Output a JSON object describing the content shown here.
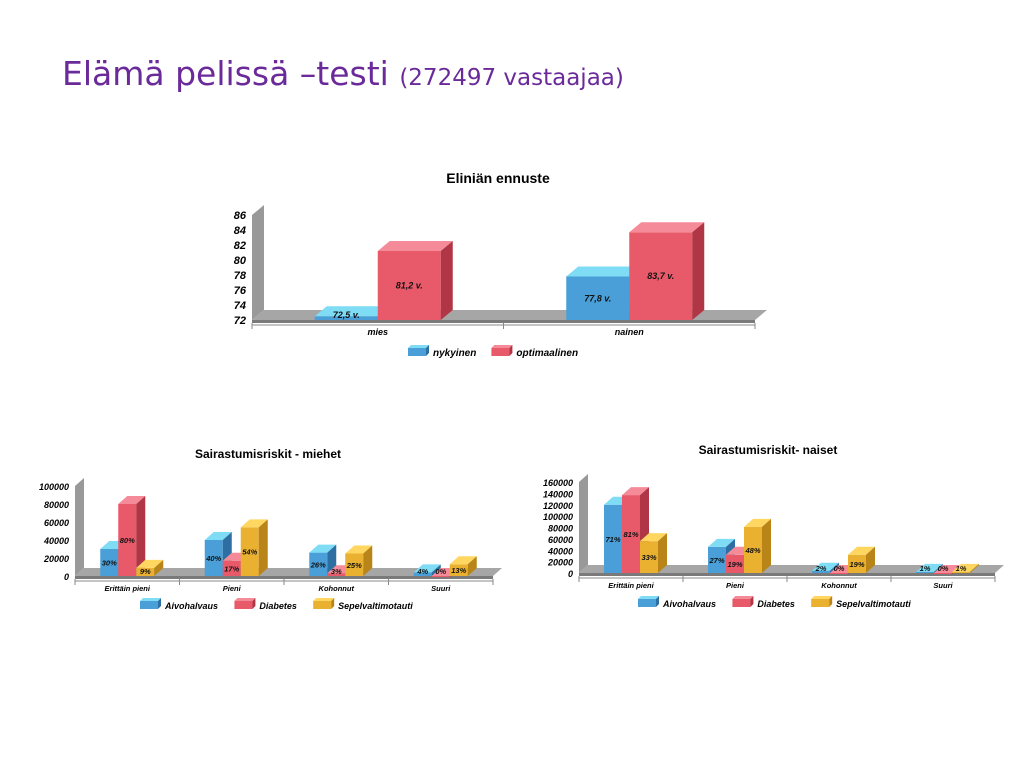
{
  "slide": {
    "title": "Elämä pelissä –testi",
    "subtitle": "(272497 vastaajaa)"
  },
  "chart_data": [
    {
      "type": "bar",
      "title": "Eliniän ennuste",
      "categories": [
        "mies",
        "nainen"
      ],
      "ylim": [
        72,
        86
      ],
      "ticks": [
        72,
        74,
        76,
        78,
        80,
        82,
        84,
        86
      ],
      "legend_position": "bottom",
      "series": [
        {
          "name": "nykyinen",
          "values": [
            72.5,
            77.8
          ],
          "labels": [
            "72,5 v.",
            "77,8 v."
          ]
        },
        {
          "name": "optimaalinen",
          "values": [
            81.2,
            83.7
          ],
          "labels": [
            "81,2 v.",
            "83,7 v."
          ]
        }
      ]
    },
    {
      "type": "bar",
      "title": "Sairastumisriskit - miehet",
      "categories": [
        "Erittäin pieni",
        "Pieni",
        "Kohonnut",
        "Suuri"
      ],
      "ylim": [
        0,
        100000
      ],
      "ticks": [
        0,
        20000,
        40000,
        60000,
        80000,
        100000
      ],
      "legend_position": "bottom",
      "series": [
        {
          "name": "Aivohalvaus",
          "values": [
            30000,
            40000,
            26000,
            4000
          ],
          "labels": [
            "30%",
            "40%",
            "26%",
            "4%"
          ]
        },
        {
          "name": "Diabetes",
          "values": [
            80000,
            17000,
            3000,
            0
          ],
          "labels": [
            "80%",
            "17%",
            "3%",
            "0%"
          ]
        },
        {
          "name": "Sepelvaltimotauti",
          "values": [
            9000,
            54000,
            25000,
            13000
          ],
          "labels": [
            "9%",
            "54%",
            "25%",
            "13%"
          ]
        }
      ]
    },
    {
      "type": "bar",
      "title": "Sairastumisriskit- naiset",
      "categories": [
        "Erittäin pieni",
        "Pieni",
        "Kohonnut",
        "Suuri"
      ],
      "ylim": [
        0,
        160000
      ],
      "ticks": [
        0,
        20000,
        40000,
        60000,
        80000,
        100000,
        120000,
        140000,
        160000
      ],
      "legend_position": "bottom",
      "series": [
        {
          "name": "Aivohalvaus",
          "values": [
            120000,
            46000,
            4000,
            2000
          ],
          "labels": [
            "71%",
            "27%",
            "2%",
            "1%"
          ]
        },
        {
          "name": "Diabetes",
          "values": [
            137000,
            32000,
            0,
            0
          ],
          "labels": [
            "81%",
            "19%",
            "0%",
            "0%"
          ]
        },
        {
          "name": "Sepelvaltimotauti",
          "values": [
            56000,
            81000,
            32000,
            2000
          ],
          "labels": [
            "33%",
            "48%",
            "19%",
            "1%"
          ]
        }
      ]
    }
  ],
  "colors": {
    "blue": "#4a9fd8",
    "blue_top": "#7fdcf5",
    "blue_side": "#2e6fa3",
    "red": "#e85a6a",
    "red_top": "#f58b98",
    "red_side": "#b03545",
    "yellow": "#eab030",
    "yellow_top": "#ffd760",
    "yellow_side": "#b98418",
    "floor": "#a6a6a6",
    "floor_front": "#7a7a7a",
    "wall": "#999999",
    "title": "#6a2a9a"
  }
}
